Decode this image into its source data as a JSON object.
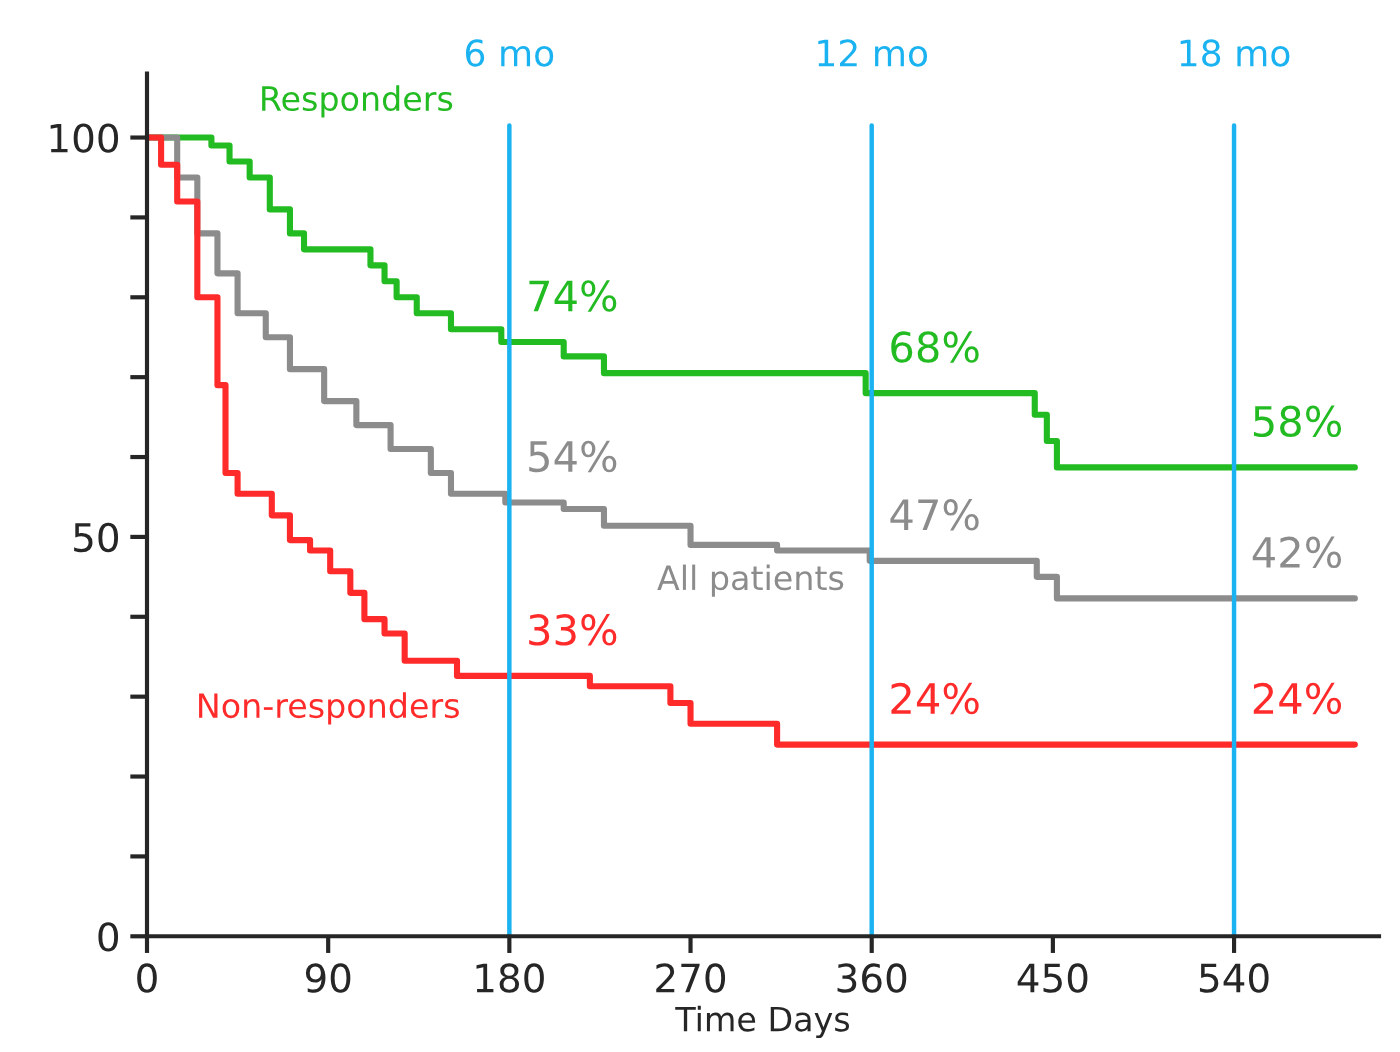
{
  "chart_data": {
    "type": "step",
    "xlabel": "Time Days",
    "xlim": [
      0,
      612
    ],
    "xticks": [
      0,
      90,
      180,
      270,
      360,
      450,
      540
    ],
    "ylim": [
      0,
      108
    ],
    "yticks": [
      0,
      {
        "value": 10,
        "label": null
      },
      {
        "value": 20,
        "label": null
      },
      {
        "value": 30,
        "label": null
      },
      {
        "value": 40,
        "label": null
      },
      50,
      {
        "value": 60,
        "label": null
      },
      {
        "value": 70,
        "label": null
      },
      {
        "value": 80,
        "label": null
      },
      {
        "value": 90,
        "label": null
      },
      100
    ],
    "grid": false,
    "legend": false,
    "series": [
      {
        "name": "Responders",
        "color": "#22bb22",
        "x": [
          0,
          32,
          41,
          51,
          61,
          71,
          78,
          111,
          118,
          124,
          134,
          151,
          176,
          207,
          227,
          357,
          441,
          447,
          452,
          600
        ],
        "values": [
          100,
          99,
          97,
          95,
          91,
          88,
          86,
          84,
          82,
          80,
          78,
          76,
          74.4,
          72.6,
          70.5,
          68,
          65.3,
          62,
          58.7,
          58.7
        ]
      },
      {
        "name": "All patients",
        "color": "#8c8c8c",
        "x": [
          0,
          15,
          25,
          35,
          45,
          59,
          71,
          88,
          104,
          121,
          141,
          151,
          178,
          207,
          227,
          270,
          313,
          359,
          442,
          452,
          600
        ],
        "values": [
          100,
          95,
          88,
          83,
          78,
          75,
          71,
          67,
          64,
          61,
          58,
          55.4,
          54.3,
          53.5,
          51.4,
          49,
          48.3,
          47,
          45,
          42.3,
          42.3
        ]
      },
      {
        "name": "Non-responders",
        "color": "#ff2b2b",
        "x": [
          0,
          7,
          15,
          25,
          35,
          39,
          45,
          62,
          71,
          81,
          91,
          101,
          108,
          118,
          128,
          154,
          220,
          260,
          270,
          313,
          600
        ],
        "values": [
          100,
          96.6,
          92,
          80,
          69,
          58,
          55.4,
          52.7,
          49.6,
          48.3,
          45.7,
          43,
          39.7,
          37.9,
          34.5,
          32.6,
          31.3,
          29.2,
          26.6,
          24,
          24
        ]
      }
    ],
    "ref_lines": [
      {
        "axis": "x",
        "value": 180,
        "label": "6 mo",
        "color": "#1ab2f0"
      },
      {
        "axis": "x",
        "value": 360,
        "label": "12 mo",
        "color": "#1ab2f0"
      },
      {
        "axis": "x",
        "value": 540,
        "label": "18 mo",
        "color": "#1ab2f0"
      }
    ],
    "annotations": [
      {
        "text": "74%",
        "x": 180,
        "y": 74.4
      },
      {
        "text": "68%",
        "x": 360,
        "y": 68
      },
      {
        "text": "58%",
        "x": 540,
        "y": 58.7
      },
      {
        "text": "54%",
        "x": 180,
        "y": 54.3
      },
      {
        "text": "47%",
        "x": 360,
        "y": 47
      },
      {
        "text": "42%",
        "x": 540,
        "y": 42.3
      },
      {
        "text": "33%",
        "x": 180,
        "y": 32.6
      },
      {
        "text": "24%",
        "x": 360,
        "y": 24
      },
      {
        "text": "24%",
        "x": 540,
        "y": 24
      }
    ]
  }
}
